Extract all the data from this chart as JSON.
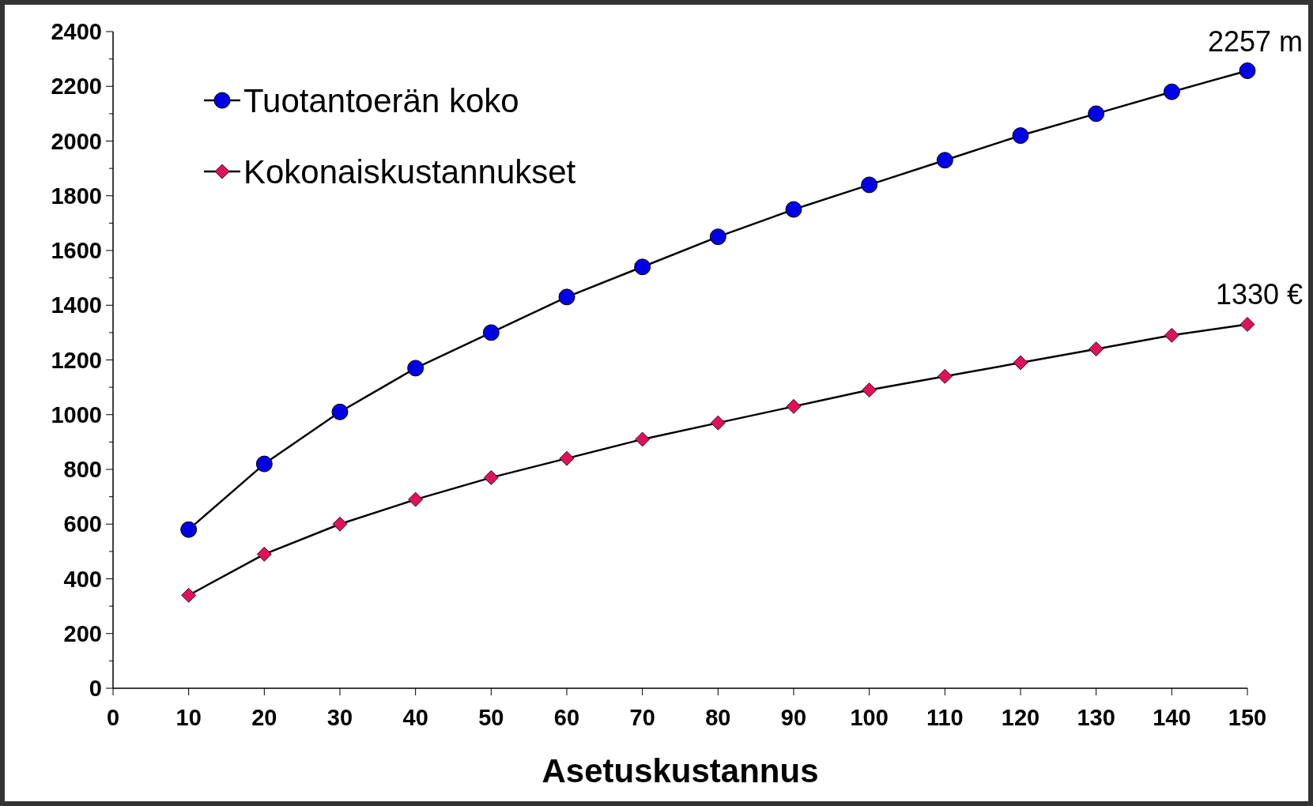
{
  "chart_data": {
    "type": "line",
    "xlabel": "Asetuskustannus",
    "x": [
      10,
      20,
      30,
      40,
      50,
      60,
      70,
      80,
      90,
      100,
      110,
      120,
      130,
      140,
      150
    ],
    "series": [
      {
        "name": "Tuotantoerän koko",
        "color": "#0000e6",
        "marker": "circle",
        "values": [
          580,
          820,
          1010,
          1170,
          1300,
          1430,
          1540,
          1650,
          1750,
          1840,
          1930,
          2020,
          2100,
          2180,
          2257
        ]
      },
      {
        "name": "Kokonaiskustannukset",
        "color": "#e0105a",
        "marker": "diamond",
        "values": [
          340,
          490,
          600,
          690,
          770,
          840,
          910,
          970,
          1030,
          1090,
          1140,
          1190,
          1240,
          1290,
          1330
        ]
      }
    ],
    "xlim": [
      0,
      150
    ],
    "xticks": [
      0,
      10,
      20,
      30,
      40,
      50,
      60,
      70,
      80,
      90,
      100,
      110,
      120,
      130,
      140,
      150
    ],
    "ylim": [
      0,
      2400
    ],
    "yticks": [
      0,
      {
        "value": 100,
        "label": null
      },
      200,
      {
        "value": 300,
        "label": null
      },
      400,
      {
        "value": 500,
        "label": null
      },
      600,
      {
        "value": 700,
        "label": null
      },
      800,
      {
        "value": 900,
        "label": null
      },
      1000,
      {
        "value": 1100,
        "label": null
      },
      1200,
      {
        "value": 1300,
        "label": null
      },
      1400,
      {
        "value": 1500,
        "label": null
      },
      1600,
      {
        "value": 1700,
        "label": null
      },
      1800,
      {
        "value": 1900,
        "label": null
      },
      2000,
      {
        "value": 2100,
        "label": null
      },
      2200,
      {
        "value": 2300,
        "label": null
      },
      2400
    ],
    "annotations": [
      {
        "text": "2257 m",
        "x": 150,
        "y": 2257
      },
      {
        "text": "1330 €",
        "x": 150,
        "y": 1330
      }
    ],
    "legend": "top left",
    "grid": false
  }
}
